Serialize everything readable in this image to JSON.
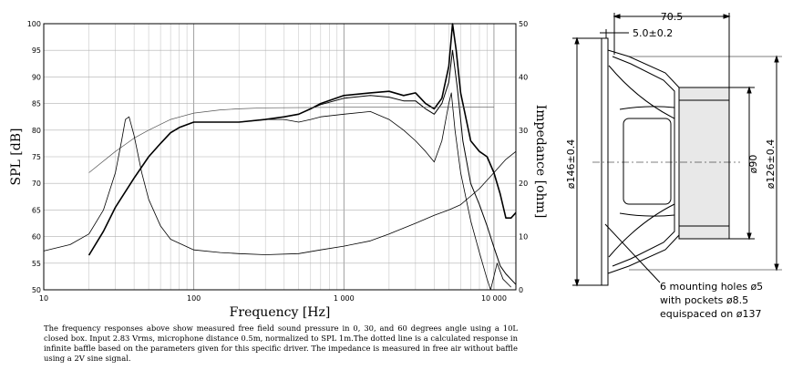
{
  "caption": "The frequency responses above show measured free field sound pressure in 0, 30, and 60 degrees angle using a 10L closed box. Input 2.83 Vrms, microphone distance 0.5m, normalized to SPL 1m.The dotted line is a calculated response in infinite baffle based on the parameters given for this specific driver. The impedance is measured in free air without baffle using a 2V sine signal.",
  "drawing": {
    "depth": "70.5",
    "flange": "5.0±0.2",
    "outer_diameter": "ø146±0.4",
    "magnet_diameter": "ø90",
    "frame_diameter": "ø126±0.4",
    "note_line1": "6 mounting holes ø5",
    "note_line2": "with pockets ø8.5",
    "note_line3": "equispaced on ø137"
  },
  "chart_data": {
    "type": "line",
    "xlabel": "Frequency [Hz]",
    "ylabel": "SPL [dB]",
    "y2label": "Impedance [ohm]",
    "xscale": "log",
    "xlim": [
      10,
      14000
    ],
    "ylim": [
      50,
      100
    ],
    "y2lim": [
      0,
      50
    ],
    "x_tick_labels": [
      "10",
      "100",
      "1 000",
      "10 000"
    ],
    "x_tick_values": [
      10,
      100,
      1000,
      10000
    ],
    "y_ticks": [
      50,
      55,
      60,
      65,
      70,
      75,
      80,
      85,
      90,
      95,
      100
    ],
    "y2_ticks": [
      0,
      10,
      20,
      30,
      40,
      50
    ],
    "grid": true,
    "series": [
      {
        "key": "spl_0deg",
        "axis": "left",
        "stroke_width": 1.6,
        "color": "#000000",
        "points": [
          [
            20,
            56.5
          ],
          [
            25,
            61
          ],
          [
            30,
            65.5
          ],
          [
            40,
            71
          ],
          [
            50,
            75
          ],
          [
            60,
            77.5
          ],
          [
            70,
            79.5
          ],
          [
            80,
            80.5
          ],
          [
            100,
            81.5
          ],
          [
            150,
            81.5
          ],
          [
            200,
            81.5
          ],
          [
            300,
            82
          ],
          [
            400,
            82.5
          ],
          [
            500,
            83
          ],
          [
            600,
            84
          ],
          [
            700,
            85
          ],
          [
            1000,
            86.5
          ],
          [
            1500,
            87
          ],
          [
            2000,
            87.3
          ],
          [
            2500,
            86.5
          ],
          [
            3000,
            87
          ],
          [
            3500,
            85
          ],
          [
            4000,
            84
          ],
          [
            4500,
            86
          ],
          [
            5000,
            92
          ],
          [
            5300,
            100
          ],
          [
            5600,
            95
          ],
          [
            6000,
            87
          ],
          [
            7000,
            78
          ],
          [
            8000,
            76
          ],
          [
            9000,
            75
          ],
          [
            10000,
            72
          ],
          [
            11000,
            68
          ],
          [
            12000,
            63.5
          ],
          [
            13000,
            63.5
          ],
          [
            14000,
            64.5
          ]
        ]
      },
      {
        "key": "spl_30deg",
        "axis": "left",
        "stroke_width": 1.0,
        "color": "#000000",
        "points": [
          [
            20,
            56.5
          ],
          [
            25,
            61
          ],
          [
            30,
            65.5
          ],
          [
            40,
            71
          ],
          [
            50,
            75
          ],
          [
            60,
            77.5
          ],
          [
            70,
            79.5
          ],
          [
            80,
            80.5
          ],
          [
            100,
            81.5
          ],
          [
            150,
            81.5
          ],
          [
            200,
            81.5
          ],
          [
            300,
            82
          ],
          [
            400,
            82.5
          ],
          [
            500,
            83
          ],
          [
            600,
            84
          ],
          [
            700,
            84.8
          ],
          [
            1000,
            86
          ],
          [
            1500,
            86.5
          ],
          [
            2000,
            86.2
          ],
          [
            2500,
            85.5
          ],
          [
            3000,
            85.5
          ],
          [
            3500,
            84
          ],
          [
            4000,
            83
          ],
          [
            4500,
            85
          ],
          [
            5000,
            89
          ],
          [
            5300,
            95
          ],
          [
            5700,
            88
          ],
          [
            6200,
            78
          ],
          [
            7000,
            70
          ],
          [
            8000,
            66
          ],
          [
            9000,
            62
          ],
          [
            10000,
            58
          ],
          [
            11000,
            54.5
          ],
          [
            12000,
            53
          ],
          [
            14000,
            51
          ]
        ]
      },
      {
        "key": "spl_60deg",
        "axis": "left",
        "stroke_width": 0.8,
        "color": "#000000",
        "points": [
          [
            20,
            56.5
          ],
          [
            25,
            61
          ],
          [
            30,
            65.5
          ],
          [
            40,
            71
          ],
          [
            50,
            75
          ],
          [
            60,
            77.5
          ],
          [
            70,
            79.5
          ],
          [
            80,
            80.5
          ],
          [
            100,
            81.5
          ],
          [
            150,
            81.5
          ],
          [
            200,
            81.5
          ],
          [
            300,
            82
          ],
          [
            400,
            82
          ],
          [
            500,
            81.5
          ],
          [
            600,
            82
          ],
          [
            700,
            82.5
          ],
          [
            1000,
            83
          ],
          [
            1500,
            83.5
          ],
          [
            2000,
            82
          ],
          [
            2500,
            80
          ],
          [
            3000,
            78
          ],
          [
            3500,
            76
          ],
          [
            4000,
            74
          ],
          [
            4500,
            78
          ],
          [
            5000,
            85
          ],
          [
            5200,
            87
          ],
          [
            5500,
            80
          ],
          [
            6000,
            72
          ],
          [
            7000,
            63
          ],
          [
            8000,
            57
          ],
          [
            9000,
            52
          ],
          [
            9500,
            50
          ],
          [
            10500,
            55
          ],
          [
            11500,
            52
          ],
          [
            13000,
            50.5
          ]
        ]
      },
      {
        "key": "spl_calculated",
        "axis": "left",
        "stroke_width": 0.7,
        "color": "#555555",
        "points": [
          [
            20,
            72
          ],
          [
            30,
            76
          ],
          [
            40,
            78.5
          ],
          [
            50,
            80
          ],
          [
            70,
            82
          ],
          [
            100,
            83.2
          ],
          [
            150,
            83.8
          ],
          [
            200,
            84
          ],
          [
            300,
            84.2
          ],
          [
            1000,
            84.3
          ],
          [
            3000,
            84.3
          ],
          [
            10000,
            84.3
          ]
        ]
      },
      {
        "key": "impedance",
        "axis": "right",
        "stroke_width": 0.8,
        "color": "#000000",
        "points": [
          [
            10,
            7.3
          ],
          [
            15,
            8.5
          ],
          [
            20,
            10.5
          ],
          [
            25,
            15
          ],
          [
            30,
            22
          ],
          [
            33,
            28
          ],
          [
            35,
            32
          ],
          [
            37,
            32.5
          ],
          [
            40,
            29
          ],
          [
            45,
            22
          ],
          [
            50,
            17
          ],
          [
            60,
            12
          ],
          [
            70,
            9.5
          ],
          [
            100,
            7.5
          ],
          [
            150,
            7
          ],
          [
            200,
            6.8
          ],
          [
            300,
            6.6
          ],
          [
            500,
            6.8
          ],
          [
            700,
            7.5
          ],
          [
            1000,
            8.2
          ],
          [
            1500,
            9.2
          ],
          [
            2000,
            10.5
          ],
          [
            3000,
            12.5
          ],
          [
            4000,
            14
          ],
          [
            5000,
            15
          ],
          [
            6000,
            16
          ],
          [
            8000,
            19
          ],
          [
            10000,
            22
          ],
          [
            12000,
            24.5
          ],
          [
            14000,
            26
          ]
        ]
      }
    ]
  }
}
